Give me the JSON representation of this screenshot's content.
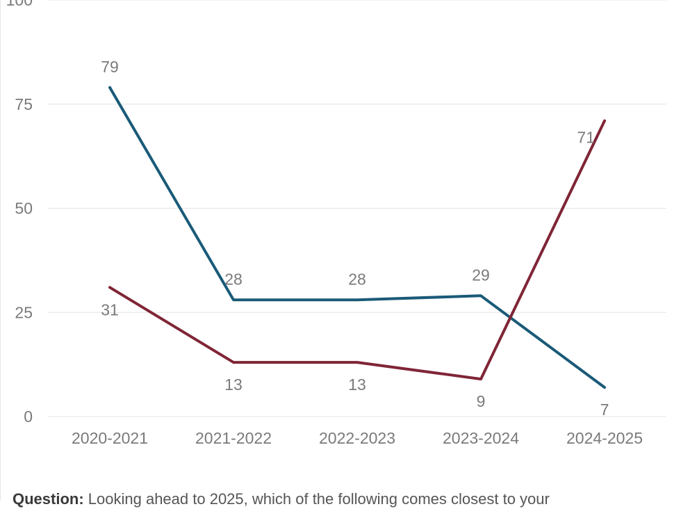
{
  "chart_data": {
    "type": "line",
    "categories": [
      "2020-2021",
      "2021-2022",
      "2022-2023",
      "2023-2024",
      "2024-2025"
    ],
    "series": [
      {
        "values": [
          79,
          28,
          28,
          29,
          7
        ],
        "color": "#1a5a78"
      },
      {
        "values": [
          31,
          13,
          13,
          9,
          71
        ],
        "color": "#7f2536"
      }
    ],
    "yticks": [
      0,
      25,
      50,
      75,
      100
    ],
    "ylim": [
      0,
      100
    ],
    "grid": true,
    "title": "",
    "xlabel": "",
    "ylabel": ""
  },
  "footnote": {
    "label": "Question:",
    "text": " Looking ahead to 2025, which of the following comes closest to your"
  }
}
